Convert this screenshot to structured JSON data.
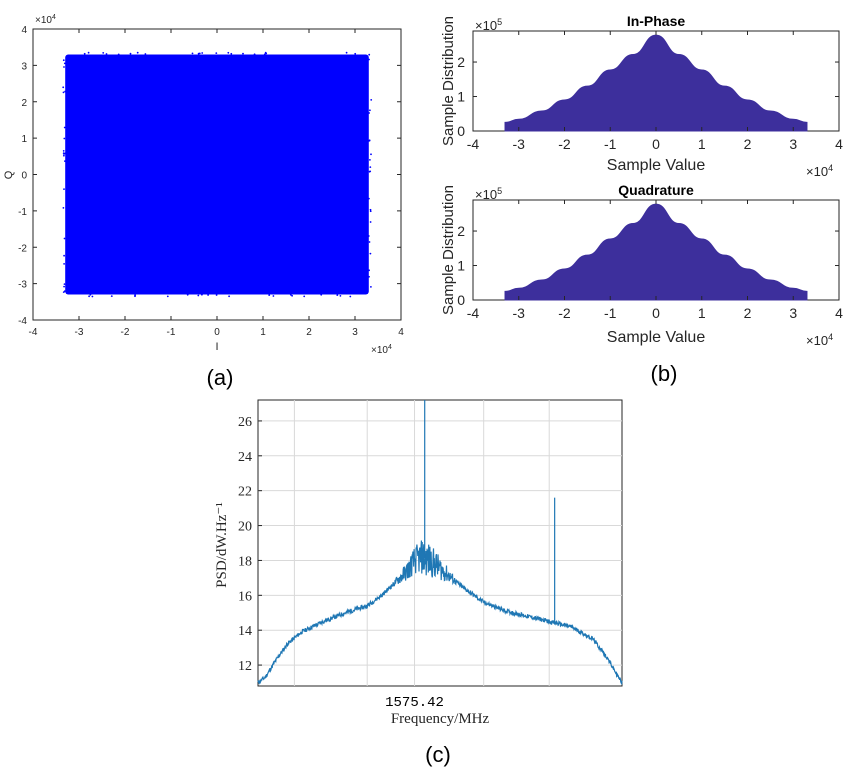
{
  "colors": {
    "scatter": "#0000ff",
    "histogram": "#3d2f9c",
    "psd": "#1f77b4",
    "grid": "#d9d9d9",
    "axis": "#262626"
  },
  "chart_data": [
    {
      "id": "a",
      "type": "scatter",
      "caption": "(a)",
      "title": "",
      "xlabel": "I",
      "ylabel": "Q",
      "x_exponent": "×10",
      "x_exponent_power": "4",
      "y_exponent": "×10",
      "y_exponent_power": "4",
      "xlim": [
        -4,
        4
      ],
      "ylim": [
        -4,
        4
      ],
      "xticks": [
        "-4",
        "-3",
        "-2",
        "-1",
        "0",
        "1",
        "2",
        "3",
        "4"
      ],
      "yticks": [
        "-4",
        "-3",
        "-2",
        "-1",
        "0",
        "1",
        "2",
        "3",
        "4"
      ],
      "region": {
        "x": [
          -3.3,
          3.3
        ],
        "y": [
          -3.3,
          3.3
        ],
        "description_units": "×10^4"
      }
    },
    {
      "id": "b1",
      "type": "area",
      "caption": "(b)",
      "title": "In-Phase",
      "xlabel": "Sample Value",
      "ylabel": "Sample Distribution",
      "x_exponent": "×10",
      "x_exponent_power": "4",
      "y_exponent": "×10",
      "y_exponent_power": "5",
      "xlim": [
        -4,
        4
      ],
      "ylim": [
        0,
        2.9
      ],
      "xticks": [
        "-4",
        "-3",
        "-2",
        "-1",
        "0",
        "1",
        "2",
        "3",
        "4"
      ],
      "yticks": [
        "0",
        "1",
        "2"
      ],
      "x": [
        -3.3,
        -3.0,
        -2.5,
        -2.0,
        -1.5,
        -1.0,
        -0.5,
        0.0,
        0.5,
        1.0,
        1.5,
        2.0,
        2.5,
        3.0,
        3.3
      ],
      "values": [
        0.25,
        0.34,
        0.58,
        0.9,
        1.3,
        1.77,
        2.22,
        2.78,
        2.22,
        1.77,
        1.3,
        0.9,
        0.58,
        0.34,
        0.25
      ]
    },
    {
      "id": "b2",
      "type": "area",
      "caption": "",
      "title": "Quadrature",
      "xlabel": "Sample Value",
      "ylabel": "Sample Distribution",
      "x_exponent": "×10",
      "x_exponent_power": "4",
      "y_exponent": "×10",
      "y_exponent_power": "5",
      "xlim": [
        -4,
        4
      ],
      "ylim": [
        0,
        2.9
      ],
      "xticks": [
        "-4",
        "-3",
        "-2",
        "-1",
        "0",
        "1",
        "2",
        "3",
        "4"
      ],
      "yticks": [
        "0",
        "1",
        "2"
      ],
      "x": [
        -3.3,
        -3.0,
        -2.5,
        -2.0,
        -1.5,
        -1.0,
        -0.5,
        0.0,
        0.5,
        1.0,
        1.5,
        2.0,
        2.5,
        3.0,
        3.3
      ],
      "values": [
        0.25,
        0.34,
        0.58,
        0.9,
        1.3,
        1.77,
        2.22,
        2.78,
        2.22,
        1.77,
        1.3,
        0.9,
        0.58,
        0.34,
        0.25
      ]
    },
    {
      "id": "c",
      "type": "line",
      "caption": "(c)",
      "title": "",
      "xlabel": "Frequency/MHz",
      "ylabel": "PSD/dW.Hz⁻¹",
      "xlim": [
        0,
        1
      ],
      "ylim": [
        10.8,
        27.2
      ],
      "xtick_label": "1575.42",
      "xtick_label_pos": 0.43,
      "yticks": [
        "12",
        "14",
        "16",
        "18",
        "20",
        "22",
        "24",
        "26"
      ],
      "x": [
        0.0,
        0.02,
        0.05,
        0.08,
        0.12,
        0.18,
        0.24,
        0.3,
        0.34,
        0.38,
        0.41,
        0.43,
        0.45,
        0.48,
        0.52,
        0.56,
        0.62,
        0.68,
        0.74,
        0.8,
        0.86,
        0.92,
        0.96,
        0.99,
        1.0
      ],
      "values": [
        11.0,
        11.3,
        12.3,
        13.2,
        13.9,
        14.5,
        15.0,
        15.4,
        16.0,
        16.8,
        17.4,
        18.0,
        18.2,
        17.9,
        17.2,
        16.5,
        15.6,
        15.1,
        14.8,
        14.5,
        14.2,
        13.5,
        12.4,
        11.3,
        11.0
      ],
      "spikes": [
        {
          "x": 0.458,
          "peak": 27.2
        },
        {
          "x": 0.815,
          "peak": 21.6
        }
      ]
    }
  ]
}
